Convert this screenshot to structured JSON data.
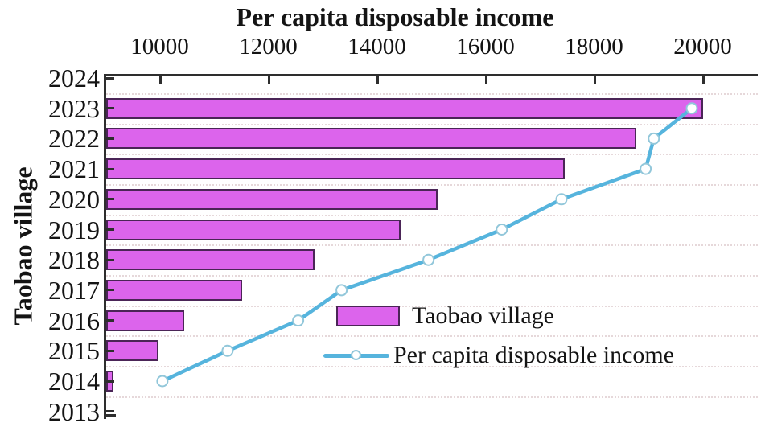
{
  "chart_data": {
    "type": "bar+line",
    "orientation": "horizontal bars, line drawn over bars, shared top x-axis",
    "title": "Per capita disposable income",
    "ylabel": "Taobao village",
    "y_categories_top_to_bottom": [
      "2024",
      "2023",
      "2022",
      "2021",
      "2020",
      "2019",
      "2018",
      "2017",
      "2016",
      "2015",
      "2014",
      "2013"
    ],
    "years_with_data": [
      "2014",
      "2015",
      "2016",
      "2017",
      "2018",
      "2019",
      "2020",
      "2021",
      "2022",
      "2023"
    ],
    "x_axis": {
      "side": "top",
      "range": [
        9000,
        21000
      ],
      "ticks": [
        10000,
        12000,
        14000,
        16000,
        18000,
        20000
      ],
      "tick_labels": [
        "10000",
        "12000",
        "14000",
        "16000",
        "18000",
        "20000"
      ]
    },
    "series": [
      {
        "name": "Taobao village",
        "type": "bar",
        "note": "bar magnitude axis is not labelled in the image; values below are the bar end positions read against the visible income axis",
        "bar_end_on_income_axis": [
          9140,
          9970,
          10440,
          11510,
          12840,
          14420,
          15100,
          17450,
          18760,
          19990
        ]
      },
      {
        "name": "Per capita disposable income",
        "type": "line",
        "marker": "open circle",
        "values": [
          10050,
          11250,
          12550,
          13350,
          14950,
          16300,
          17400,
          18950,
          19100,
          19800
        ]
      }
    ],
    "legend": {
      "position": "inside lower-right of plot",
      "entries": [
        "Taobao village",
        "Per capita disposable income"
      ]
    },
    "grid": "dotted horizontal lines at category boundaries"
  },
  "colors": {
    "bar_fill": "#dc64ec",
    "bar_border": "#4b2557",
    "line": "#56b4dd",
    "marker_fill": "#ffffff",
    "marker_stroke": "#92c7da",
    "axis": "#2e2e2e",
    "gridline": "#e6d8da",
    "text": "#141414",
    "background": "#ffffff"
  }
}
